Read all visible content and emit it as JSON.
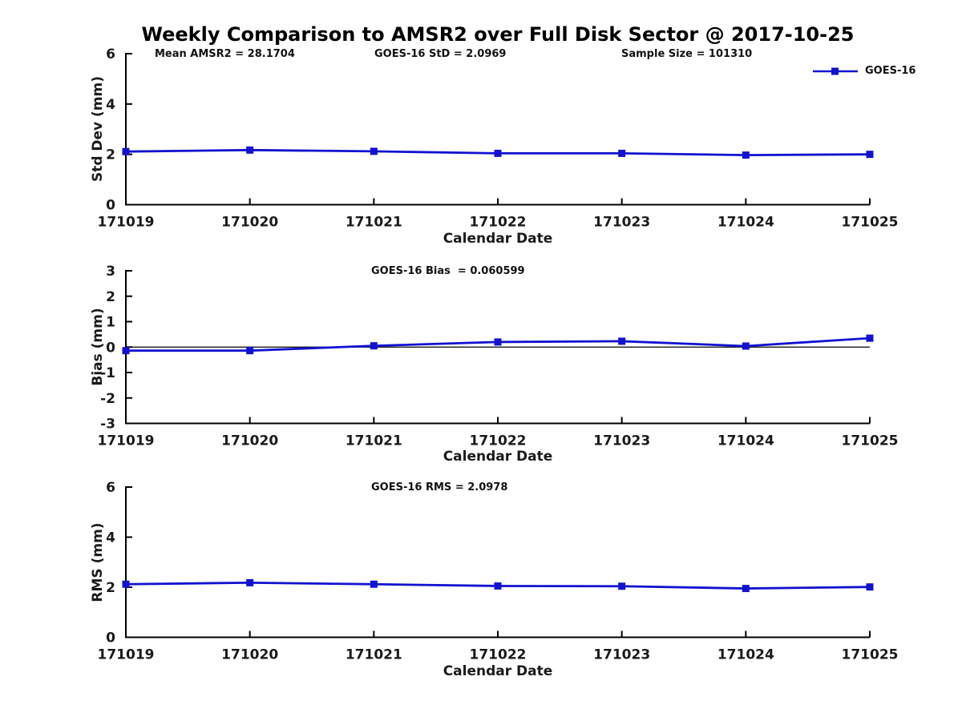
{
  "figure_title": "Weekly Comparison to AMSR2 over Full Disk Sector @ 2017-10-25",
  "legend": {
    "label": "GOES-16"
  },
  "colors": {
    "line": "#1212d0",
    "axis": "#000000",
    "zero_line": "#000000"
  },
  "chart_data": [
    {
      "type": "line",
      "name": "std-dev",
      "series_label": "GOES-16",
      "title": "",
      "ylabel": "Std Dev (mm)",
      "xlabel": "Calendar Date",
      "ylim": [
        0,
        6
      ],
      "yticks": [
        0,
        2,
        4,
        6
      ],
      "zero_line": false,
      "grid": false,
      "legend_position": "top-right",
      "categories": [
        "171019",
        "171020",
        "171021",
        "171022",
        "171023",
        "171024",
        "171025"
      ],
      "values": [
        2.11,
        2.17,
        2.12,
        2.04,
        2.04,
        1.97,
        2.0
      ],
      "annotations": [
        "Mean AMSR2 = 28.1704",
        "GOES-16 StD = 2.0969",
        "Sample Size = 101310"
      ]
    },
    {
      "type": "line",
      "name": "bias",
      "series_label": "GOES-16",
      "title": "",
      "ylabel": "Bias (mm)",
      "xlabel": "Calendar Date",
      "ylim": [
        -3,
        3
      ],
      "yticks": [
        3,
        2,
        1,
        0,
        -1,
        -2,
        -3
      ],
      "zero_line": true,
      "grid": false,
      "categories": [
        "171019",
        "171020",
        "171021",
        "171022",
        "171023",
        "171024",
        "171025"
      ],
      "values": [
        -0.14,
        -0.14,
        0.05,
        0.2,
        0.23,
        0.04,
        0.35
      ],
      "annotations": [
        "GOES-16 Bias  = 0.060599"
      ]
    },
    {
      "type": "line",
      "name": "rms",
      "series_label": "GOES-16",
      "title": "",
      "ylabel": "RMS (mm)",
      "xlabel": "Calendar Date",
      "ylim": [
        0,
        6
      ],
      "yticks": [
        0,
        2,
        4,
        6
      ],
      "zero_line": false,
      "grid": false,
      "categories": [
        "171019",
        "171020",
        "171021",
        "171022",
        "171023",
        "171024",
        "171025"
      ],
      "values": [
        2.12,
        2.18,
        2.12,
        2.05,
        2.04,
        1.95,
        2.01
      ],
      "annotations": [
        "GOES-16 RMS = 2.0978"
      ]
    }
  ]
}
